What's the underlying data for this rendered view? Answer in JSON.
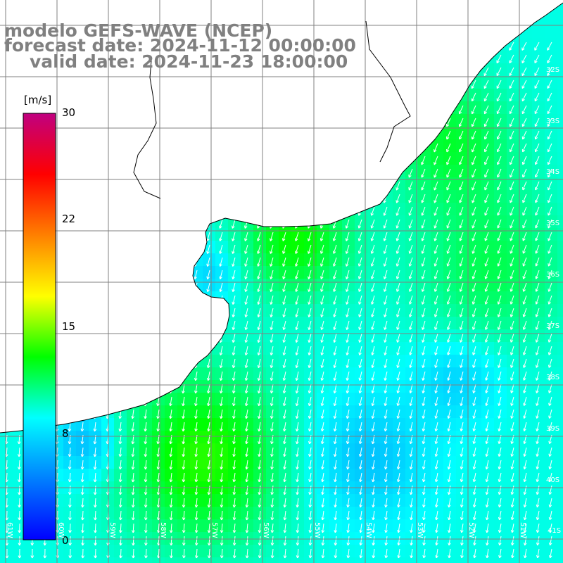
{
  "title": {
    "line1": "modelo GEFS-WAVE (NCEP)",
    "line2": "forecast date: 2024-11-12 00:00:00",
    "line3": "valid date: 2024-11-23 18:00:00"
  },
  "colorbar": {
    "unit": "[m/s]",
    "ticks": [
      "30",
      "22",
      "15",
      "8",
      "0"
    ],
    "colors": [
      "#0000ff",
      "#0080ff",
      "#00ffff",
      "#00ff00",
      "#ffff00",
      "#ff8000",
      "#ff0000",
      "#c00080"
    ]
  },
  "lat_labels": [
    "32S",
    "33S",
    "34S",
    "35S",
    "36S",
    "37S",
    "38S",
    "39S",
    "40S",
    "41S"
  ],
  "lon_labels": [
    "61W",
    "60W",
    "59W",
    "58W",
    "57W",
    "56W",
    "55W",
    "54W",
    "53W",
    "52W",
    "51W"
  ],
  "colors": {
    "land": "#ffffff",
    "grid": "#808080",
    "coast": "#000000",
    "arrow": "#ffffff",
    "title": "#808080"
  }
}
